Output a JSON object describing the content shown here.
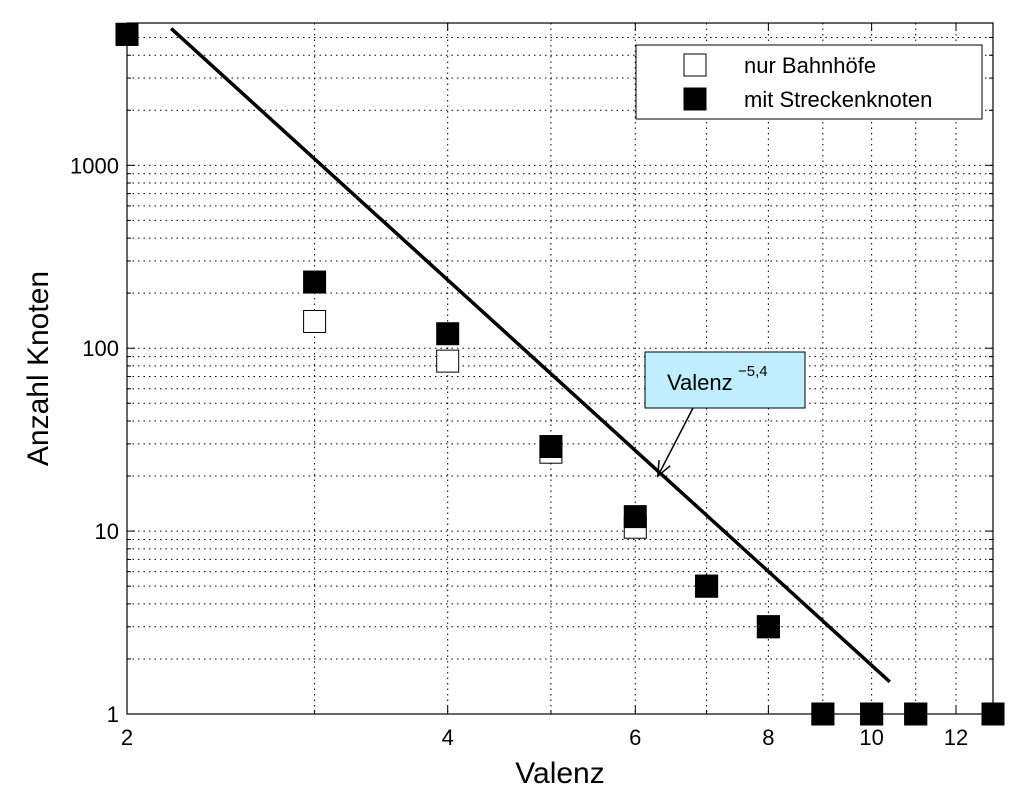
{
  "chart_data": {
    "type": "scatter",
    "xlabel": "Valenz",
    "ylabel": "Anzahl Knoten",
    "x_scale": "log",
    "y_scale": "log",
    "xlim": [
      2,
      13
    ],
    "ylim": [
      1,
      6000
    ],
    "x_ticks": [
      2,
      4,
      6,
      8,
      10,
      12
    ],
    "x_tick_labels": [
      "2",
      "4",
      "6",
      "8",
      "10",
      "12"
    ],
    "y_ticks": [
      1,
      10,
      100,
      1000
    ],
    "y_tick_labels": [
      "1",
      "10",
      "100",
      "1000"
    ],
    "grid": true,
    "grid_style": "dotted",
    "legend_position": "top-right",
    "series": [
      {
        "name": "nur Bahnhöfe",
        "marker": "square-open",
        "points": [
          {
            "x": 2,
            "y": 5200
          },
          {
            "x": 3,
            "y": 140
          },
          {
            "x": 4,
            "y": 85
          },
          {
            "x": 5,
            "y": 27
          },
          {
            "x": 6,
            "y": 10.5
          },
          {
            "x": 7,
            "y": 5
          },
          {
            "x": 8,
            "y": 3
          },
          {
            "x": 9,
            "y": 1
          },
          {
            "x": 10,
            "y": 1
          },
          {
            "x": 11,
            "y": 1
          },
          {
            "x": 13,
            "y": 1
          }
        ]
      },
      {
        "name": "mit Streckenknoten",
        "marker": "square-filled",
        "points": [
          {
            "x": 2,
            "y": 5200
          },
          {
            "x": 3,
            "y": 230
          },
          {
            "x": 4,
            "y": 120
          },
          {
            "x": 5,
            "y": 29
          },
          {
            "x": 6,
            "y": 12
          },
          {
            "x": 7,
            "y": 5
          },
          {
            "x": 8,
            "y": 3
          },
          {
            "x": 9,
            "y": 1
          },
          {
            "x": 10,
            "y": 1
          },
          {
            "x": 11,
            "y": 1
          },
          {
            "x": 13,
            "y": 1
          }
        ]
      }
    ],
    "fit_line": {
      "exponent": -5.4,
      "points": [
        {
          "x": 2.2,
          "y": 5600
        },
        {
          "x": 10.4,
          "y": 1.5
        }
      ]
    },
    "annotation": {
      "base_text": "Valenz",
      "superscript": "−5,4",
      "box_color": "#bfefff",
      "arrow_target": {
        "x": 6.3,
        "y": 20
      }
    }
  }
}
